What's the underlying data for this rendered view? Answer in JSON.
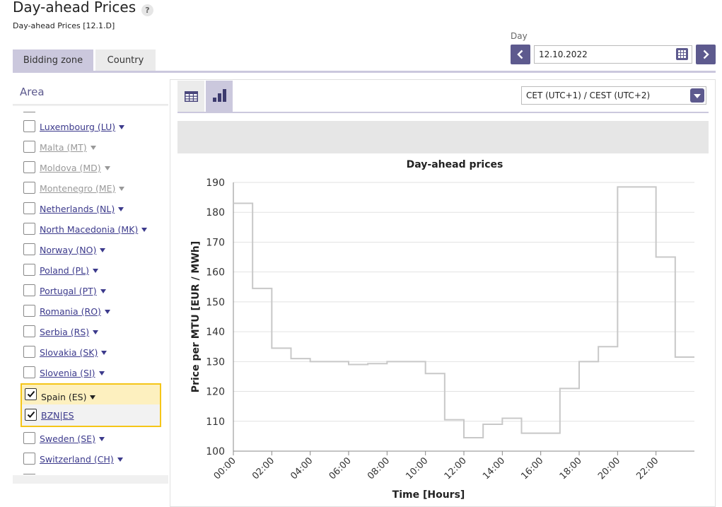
{
  "header": {
    "title": "Day-ahead Prices",
    "help": "?",
    "subtitle": "Day-ahead Prices [12.1.D]"
  },
  "tabs": [
    {
      "label": "Bidding zone",
      "active": true
    },
    {
      "label": "Country",
      "active": false
    }
  ],
  "day": {
    "label": "Day",
    "value": "12.10.2022"
  },
  "area": {
    "title": "Area",
    "items": [
      {
        "label": "Luxembourg (LU)",
        "enabled": true
      },
      {
        "label": "Malta (MT)",
        "enabled": false
      },
      {
        "label": "Moldova (MD)",
        "enabled": false
      },
      {
        "label": "Montenegro (ME)",
        "enabled": false
      },
      {
        "label": "Netherlands (NL)",
        "enabled": true
      },
      {
        "label": "North Macedonia (MK)",
        "enabled": true
      },
      {
        "label": "Norway (NO)",
        "enabled": true
      },
      {
        "label": "Poland (PL)",
        "enabled": true
      },
      {
        "label": "Portugal (PT)",
        "enabled": true
      },
      {
        "label": "Romania (RO)",
        "enabled": true
      },
      {
        "label": "Serbia (RS)",
        "enabled": true
      },
      {
        "label": "Slovakia (SK)",
        "enabled": true
      },
      {
        "label": "Slovenia (SI)",
        "enabled": true
      }
    ],
    "selected": {
      "label": "Spain (ES)",
      "child": "BZN|ES"
    },
    "items_after": [
      {
        "label": "Sweden (SE)",
        "enabled": true
      },
      {
        "label": "Switzerland (CH)",
        "enabled": true
      }
    ]
  },
  "timezone": {
    "value": "CET (UTC+1) / CEST (UTC+2)"
  },
  "colors": {
    "accent": "#5d5a8e",
    "tab_active": "#cbc8dd",
    "highlight": "#f5c518",
    "line": "#c8c8c8"
  },
  "chart_data": {
    "type": "line",
    "step": true,
    "title": "Day-ahead prices",
    "xlabel": "Time [Hours]",
    "ylabel": "Price per MTU [EUR / MWh]",
    "ylim": [
      100,
      190
    ],
    "yticks": [
      100,
      110,
      120,
      130,
      140,
      150,
      160,
      170,
      180,
      190
    ],
    "xticks": [
      "00:00",
      "02:00",
      "04:00",
      "06:00",
      "08:00",
      "10:00",
      "12:00",
      "14:00",
      "16:00",
      "18:00",
      "20:00",
      "22:00"
    ],
    "grid": true,
    "x": [
      0,
      1,
      2,
      3,
      4,
      5,
      6,
      7,
      8,
      9,
      10,
      11,
      12,
      13,
      14,
      15,
      16,
      17,
      18,
      19,
      20,
      21,
      22,
      23
    ],
    "series": [
      {
        "values": [
          183,
          154.5,
          134.5,
          131,
          130,
          130,
          129,
          129.3,
          130,
          130,
          126,
          110.5,
          104.5,
          109,
          111,
          106,
          106,
          121,
          130,
          135,
          188.5,
          188.5,
          165,
          131.5
        ]
      }
    ]
  }
}
